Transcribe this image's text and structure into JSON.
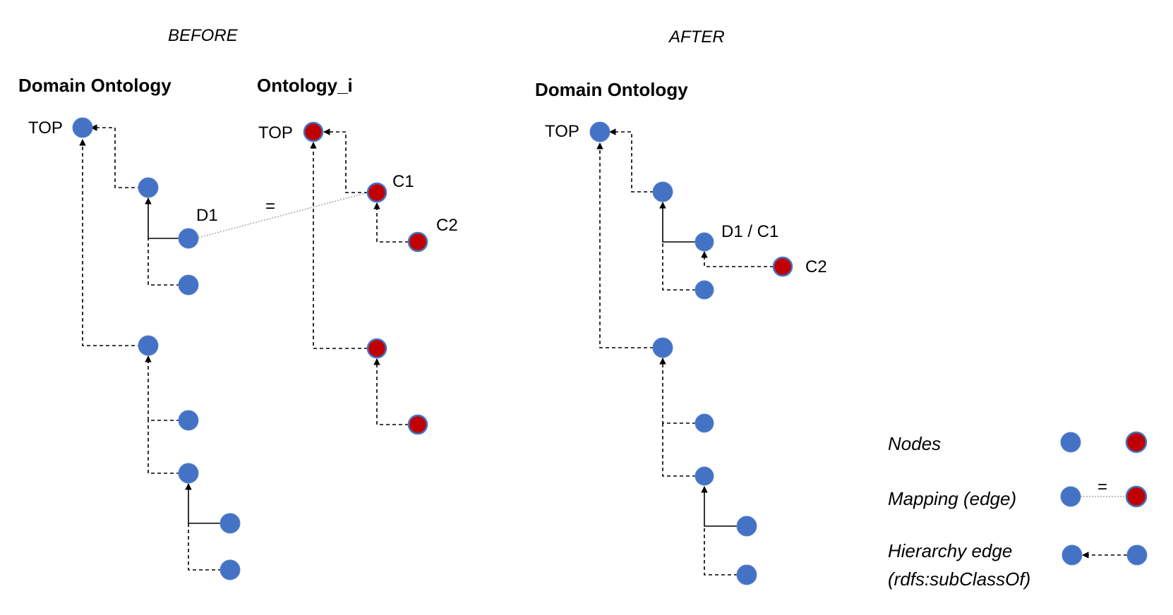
{
  "headers": {
    "before": "BEFORE",
    "after": "AFTER"
  },
  "before": {
    "domain_title": "Domain Ontology",
    "ontology_title": "Ontology_i",
    "top_label_domain": "TOP",
    "top_label_ontology": "TOP",
    "d1_label": "D1",
    "c1_label": "C1",
    "c2_label": "C2",
    "mapping_symbol": "="
  },
  "after": {
    "domain_title": "Domain Ontology",
    "top_label": "TOP",
    "merged_label": "D1 / C1",
    "c2_label": "C2"
  },
  "legend": {
    "nodes": "Nodes",
    "mapping": "Mapping (edge)",
    "mapping_symbol": "=",
    "hierarchy_line1": "Hierarchy edge",
    "hierarchy_line2": "(rdfs:subClassOf)"
  },
  "colors": {
    "domain_node": "#4472c4",
    "ontology_node": "#c00000",
    "edge": "#000000",
    "mapping_edge": "#a6a6a6"
  }
}
